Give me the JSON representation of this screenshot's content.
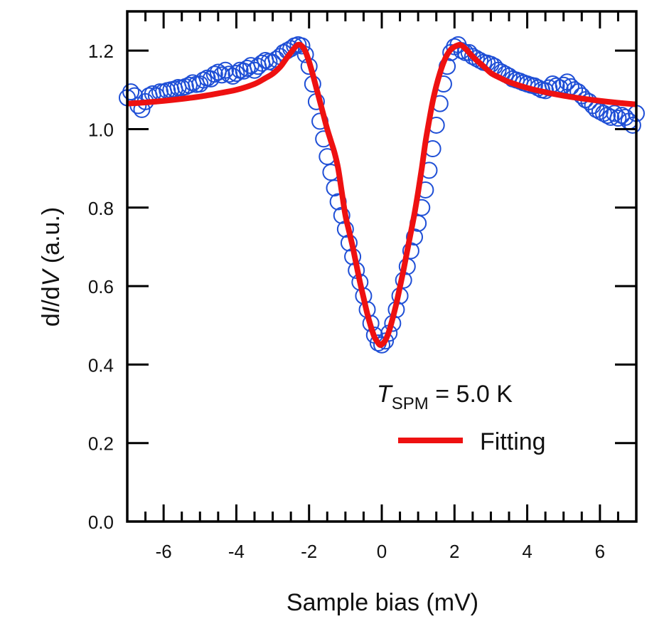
{
  "chart_data": {
    "type": "scatter",
    "title": "",
    "xlabel": "Sample bias (mV)",
    "ylabel": {
      "prefix": "d",
      "italic1": "I",
      "mid": "/d",
      "italic2": "V",
      "suffix": " (a.u.)"
    },
    "xlim": [
      -7,
      7
    ],
    "ylim": [
      0,
      1.3
    ],
    "xticks": [
      -6,
      -4,
      -2,
      0,
      2,
      4,
      6
    ],
    "xtick_labels": [
      "-6",
      "-4",
      "-2",
      "0",
      "2",
      "4",
      "6"
    ],
    "x_minor_step": 0.5,
    "yticks": [
      0.0,
      0.2,
      0.4,
      0.6,
      0.8,
      1.0,
      1.2
    ],
    "ytick_labels": [
      "0.0",
      "0.2",
      "0.4",
      "0.6",
      "0.8",
      "1.0",
      "1.2"
    ],
    "grid": false,
    "annotation": {
      "symbol": "T",
      "subscript": "SPM",
      "text": " = 5.0 K"
    },
    "legend": {
      "placement": "bottom-right",
      "entries": [
        {
          "label": "Fitting",
          "series": "fit"
        }
      ]
    },
    "series": [
      {
        "name": "data",
        "style": "open-circle",
        "color": "#1f4fd6",
        "x": [
          -7.0,
          -6.9,
          -6.8,
          -6.7,
          -6.6,
          -6.5,
          -6.4,
          -6.3,
          -6.2,
          -6.1,
          -6.0,
          -5.9,
          -5.8,
          -5.7,
          -5.6,
          -5.5,
          -5.4,
          -5.3,
          -5.2,
          -5.1,
          -5.0,
          -4.9,
          -4.8,
          -4.7,
          -4.6,
          -4.5,
          -4.4,
          -4.3,
          -4.2,
          -4.1,
          -4.0,
          -3.9,
          -3.8,
          -3.7,
          -3.6,
          -3.5,
          -3.4,
          -3.3,
          -3.2,
          -3.1,
          -3.0,
          -2.9,
          -2.8,
          -2.7,
          -2.6,
          -2.5,
          -2.4,
          -2.3,
          -2.2,
          -2.1,
          -2.0,
          -1.9,
          -1.8,
          -1.7,
          -1.6,
          -1.5,
          -1.4,
          -1.3,
          -1.2,
          -1.1,
          -1.0,
          -0.9,
          -0.8,
          -0.7,
          -0.6,
          -0.5,
          -0.4,
          -0.3,
          -0.2,
          -0.1,
          0.0,
          0.1,
          0.2,
          0.3,
          0.4,
          0.5,
          0.6,
          0.7,
          0.8,
          0.9,
          1.0,
          1.1,
          1.2,
          1.3,
          1.4,
          1.5,
          1.6,
          1.7,
          1.8,
          1.9,
          2.0,
          2.1,
          2.2,
          2.3,
          2.4,
          2.5,
          2.6,
          2.7,
          2.8,
          2.9,
          3.0,
          3.1,
          3.2,
          3.3,
          3.4,
          3.5,
          3.6,
          3.7,
          3.8,
          3.9,
          4.0,
          4.1,
          4.2,
          4.3,
          4.4,
          4.5,
          4.6,
          4.7,
          4.8,
          4.9,
          5.0,
          5.1,
          5.2,
          5.3,
          5.4,
          5.5,
          5.6,
          5.7,
          5.8,
          5.9,
          6.0,
          6.1,
          6.2,
          6.3,
          6.4,
          6.5,
          6.6,
          6.7,
          6.8,
          6.9,
          7.0
        ],
        "y": [
          1.08,
          1.095,
          1.085,
          1.06,
          1.05,
          1.07,
          1.085,
          1.09,
          1.085,
          1.095,
          1.095,
          1.098,
          1.1,
          1.102,
          1.106,
          1.105,
          1.108,
          1.112,
          1.118,
          1.114,
          1.115,
          1.125,
          1.13,
          1.128,
          1.14,
          1.145,
          1.138,
          1.15,
          1.14,
          1.135,
          1.142,
          1.15,
          1.148,
          1.155,
          1.162,
          1.15,
          1.16,
          1.168,
          1.175,
          1.172,
          1.17,
          1.178,
          1.185,
          1.195,
          1.2,
          1.205,
          1.212,
          1.215,
          1.212,
          1.19,
          1.16,
          1.115,
          1.07,
          1.02,
          0.975,
          0.93,
          0.89,
          0.85,
          0.815,
          0.78,
          0.745,
          0.71,
          0.675,
          0.64,
          0.61,
          0.575,
          0.54,
          0.505,
          0.475,
          0.455,
          0.45,
          0.46,
          0.48,
          0.505,
          0.54,
          0.575,
          0.615,
          0.65,
          0.69,
          0.725,
          0.76,
          0.8,
          0.845,
          0.895,
          0.95,
          1.01,
          1.065,
          1.115,
          1.16,
          1.195,
          1.21,
          1.215,
          1.2,
          1.195,
          1.195,
          1.185,
          1.18,
          1.175,
          1.17,
          1.168,
          1.165,
          1.16,
          1.15,
          1.145,
          1.14,
          1.135,
          1.128,
          1.125,
          1.122,
          1.118,
          1.115,
          1.112,
          1.11,
          1.105,
          1.1,
          1.098,
          1.105,
          1.115,
          1.11,
          1.105,
          1.112,
          1.12,
          1.108,
          1.1,
          1.095,
          1.085,
          1.075,
          1.07,
          1.06,
          1.05,
          1.045,
          1.04,
          1.035,
          1.03,
          1.04,
          1.028,
          1.035,
          1.03,
          1.02,
          1.01,
          1.04
        ]
      },
      {
        "name": "fit",
        "label": "Fitting",
        "style": "line",
        "color": "#ee1111",
        "x": [
          -7.0,
          -6.5,
          -6.0,
          -5.5,
          -5.0,
          -4.5,
          -4.0,
          -3.5,
          -3.2,
          -3.0,
          -2.8,
          -2.7,
          -2.6,
          -2.5,
          -2.4,
          -2.3,
          -2.2,
          -2.1,
          -2.0,
          -1.9,
          -1.8,
          -1.7,
          -1.6,
          -1.5,
          -1.4,
          -1.3,
          -1.2,
          -1.1,
          -1.0,
          -0.9,
          -0.8,
          -0.7,
          -0.6,
          -0.5,
          -0.4,
          -0.3,
          -0.2,
          -0.1,
          -0.05,
          0.0,
          0.1,
          0.2,
          0.3,
          0.4,
          0.5,
          0.6,
          0.7,
          0.8,
          0.9,
          1.0,
          1.1,
          1.2,
          1.3,
          1.4,
          1.5,
          1.6,
          1.7,
          1.8,
          1.9,
          2.0,
          2.1,
          2.15,
          2.2,
          2.3,
          2.4,
          2.5,
          2.6,
          2.7,
          2.8,
          3.0,
          3.2,
          3.5,
          4.0,
          4.5,
          5.0,
          5.5,
          6.0,
          6.5,
          7.0
        ],
        "y": [
          1.065,
          1.068,
          1.072,
          1.077,
          1.083,
          1.091,
          1.1,
          1.115,
          1.13,
          1.141,
          1.158,
          1.17,
          1.183,
          1.195,
          1.207,
          1.215,
          1.212,
          1.198,
          1.172,
          1.14,
          1.105,
          1.07,
          1.035,
          1.0,
          0.97,
          0.94,
          0.9,
          0.84,
          0.78,
          0.74,
          0.7,
          0.655,
          0.61,
          0.57,
          0.53,
          0.497,
          0.47,
          0.455,
          0.45,
          0.451,
          0.462,
          0.485,
          0.518,
          0.555,
          0.598,
          0.642,
          0.69,
          0.737,
          0.785,
          0.84,
          0.9,
          0.966,
          1.02,
          1.07,
          1.11,
          1.143,
          1.17,
          1.19,
          1.203,
          1.21,
          1.214,
          1.215,
          1.213,
          1.205,
          1.195,
          1.185,
          1.176,
          1.168,
          1.16,
          1.143,
          1.133,
          1.12,
          1.105,
          1.094,
          1.085,
          1.078,
          1.072,
          1.067,
          1.063
        ]
      }
    ]
  }
}
